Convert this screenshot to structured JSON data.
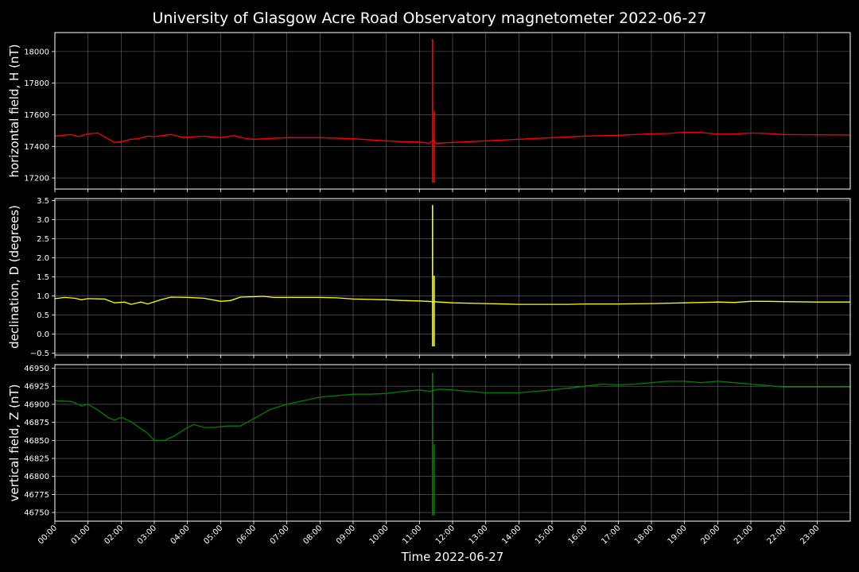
{
  "chart_data": {
    "type": "line",
    "title": "University of Glasgow Acre Road Observatory magnetometer 2022-06-27",
    "xlabel": "Time 2022-06-27",
    "x_ticks": [
      "00:00",
      "01:00",
      "02:00",
      "03:00",
      "04:00",
      "05:00",
      "06:00",
      "07:00",
      "08:00",
      "09:00",
      "10:00",
      "11:00",
      "12:00",
      "13:00",
      "14:00",
      "15:00",
      "16:00",
      "17:00",
      "18:00",
      "19:00",
      "20:00",
      "21:00",
      "22:00",
      "23:00"
    ],
    "xlim_hours": [
      0,
      24
    ],
    "grid": true,
    "panels": [
      {
        "name": "horizontal",
        "ylabel": "horizontal field, H (nT)",
        "color": "#ff0000",
        "ylim": [
          17130,
          18120
        ],
        "yticks": [
          17200,
          17400,
          17600,
          17800,
          18000
        ],
        "ytick_labels": [
          "17200",
          "17400",
          "17600",
          "17800",
          "18000"
        ],
        "points": [
          [
            0,
            17465
          ],
          [
            0.5,
            17475
          ],
          [
            0.7,
            17462
          ],
          [
            1,
            17480
          ],
          [
            1.3,
            17485
          ],
          [
            1.5,
            17460
          ],
          [
            1.8,
            17425
          ],
          [
            2,
            17430
          ],
          [
            2.3,
            17445
          ],
          [
            2.5,
            17448
          ],
          [
            2.8,
            17465
          ],
          [
            3,
            17462
          ],
          [
            3.5,
            17475
          ],
          [
            3.8,
            17460
          ],
          [
            4,
            17458
          ],
          [
            4.5,
            17465
          ],
          [
            4.8,
            17458
          ],
          [
            5,
            17455
          ],
          [
            5.4,
            17468
          ],
          [
            5.8,
            17448
          ],
          [
            6,
            17445
          ],
          [
            7,
            17455
          ],
          [
            8,
            17455
          ],
          [
            9,
            17448
          ],
          [
            10,
            17435
          ],
          [
            10.5,
            17430
          ],
          [
            11,
            17428
          ],
          [
            11.3,
            17420
          ],
          [
            11.42,
            17440
          ],
          [
            11.5,
            17420
          ],
          [
            12,
            17425
          ],
          [
            12.5,
            17430
          ],
          [
            13,
            17435
          ],
          [
            14,
            17445
          ],
          [
            15,
            17455
          ],
          [
            16,
            17465
          ],
          [
            17,
            17470
          ],
          [
            18,
            17480
          ],
          [
            18.5,
            17482
          ],
          [
            19,
            17490
          ],
          [
            19.5,
            17488
          ],
          [
            20,
            17478
          ],
          [
            20.5,
            17478
          ],
          [
            21,
            17485
          ],
          [
            21.5,
            17482
          ],
          [
            22,
            17475
          ],
          [
            23,
            17473
          ],
          [
            24,
            17472
          ]
        ],
        "spike": {
          "hour": 11.42,
          "min": 17170,
          "max": 18080
        }
      },
      {
        "name": "declination",
        "ylabel": "declination, D (degrees)",
        "color": "#ffff00",
        "ylim": [
          -0.55,
          3.55
        ],
        "yticks": [
          -0.5,
          0,
          0.5,
          1,
          1.5,
          2,
          2.5,
          3,
          3.5
        ],
        "ytick_labels": [
          "−0.5",
          "0.0",
          "0.5",
          "1.0",
          "1.5",
          "2.0",
          "2.5",
          "3.0",
          "3.5"
        ],
        "points": [
          [
            0,
            0.93
          ],
          [
            0.3,
            0.96
          ],
          [
            0.6,
            0.94
          ],
          [
            0.8,
            0.9
          ],
          [
            1,
            0.93
          ],
          [
            1.5,
            0.92
          ],
          [
            1.8,
            0.82
          ],
          [
            2.1,
            0.84
          ],
          [
            2.3,
            0.78
          ],
          [
            2.6,
            0.84
          ],
          [
            2.8,
            0.79
          ],
          [
            3.2,
            0.9
          ],
          [
            3.5,
            0.97
          ],
          [
            4,
            0.96
          ],
          [
            4.5,
            0.94
          ],
          [
            5,
            0.86
          ],
          [
            5.3,
            0.88
          ],
          [
            5.6,
            0.97
          ],
          [
            6,
            0.98
          ],
          [
            6.3,
            0.99
          ],
          [
            6.6,
            0.96
          ],
          [
            7,
            0.96
          ],
          [
            8,
            0.96
          ],
          [
            8.5,
            0.95
          ],
          [
            9,
            0.92
          ],
          [
            10,
            0.9
          ],
          [
            10.5,
            0.88
          ],
          [
            11,
            0.87
          ],
          [
            11.4,
            0.85
          ],
          [
            12,
            0.82
          ],
          [
            13,
            0.8
          ],
          [
            14,
            0.78
          ],
          [
            15,
            0.78
          ],
          [
            15.5,
            0.78
          ],
          [
            16,
            0.79
          ],
          [
            17,
            0.79
          ],
          [
            18,
            0.8
          ],
          [
            19,
            0.82
          ],
          [
            20,
            0.84
          ],
          [
            20.5,
            0.83
          ],
          [
            21,
            0.86
          ],
          [
            21.5,
            0.86
          ],
          [
            22,
            0.85
          ],
          [
            23,
            0.84
          ],
          [
            24,
            0.84
          ]
        ],
        "spike": {
          "hour": 11.42,
          "min": -0.32,
          "max": 3.38
        }
      },
      {
        "name": "vertical",
        "ylabel": "vertical field, Z (nT)",
        "color": "#008000",
        "ylim": [
          46738,
          46955
        ],
        "yticks": [
          46750,
          46775,
          46800,
          46825,
          46850,
          46875,
          46900,
          46925,
          46950
        ],
        "ytick_labels": [
          "46750",
          "46775",
          "46800",
          "46825",
          "46850",
          "46875",
          "46900",
          "46925",
          "46950"
        ],
        "points": [
          [
            0,
            46905
          ],
          [
            0.5,
            46904
          ],
          [
            0.8,
            46898
          ],
          [
            1,
            46900
          ],
          [
            1.3,
            46892
          ],
          [
            1.6,
            46882
          ],
          [
            1.8,
            46878
          ],
          [
            2,
            46882
          ],
          [
            2.3,
            46876
          ],
          [
            2.6,
            46866
          ],
          [
            2.8,
            46860
          ],
          [
            3,
            46850
          ],
          [
            3.3,
            46850
          ],
          [
            3.6,
            46856
          ],
          [
            4,
            46868
          ],
          [
            4.2,
            46872
          ],
          [
            4.5,
            46868
          ],
          [
            4.8,
            46868
          ],
          [
            5.2,
            46870
          ],
          [
            5.6,
            46870
          ],
          [
            6,
            46880
          ],
          [
            6.5,
            46893
          ],
          [
            7,
            46900
          ],
          [
            7.5,
            46905
          ],
          [
            8,
            46910
          ],
          [
            8.5,
            46912
          ],
          [
            9,
            46914
          ],
          [
            9.5,
            46914
          ],
          [
            10,
            46915
          ],
          [
            10.5,
            46918
          ],
          [
            11,
            46920
          ],
          [
            11.3,
            46918
          ],
          [
            11.6,
            46921
          ],
          [
            12,
            46920
          ],
          [
            12.5,
            46918
          ],
          [
            13,
            46916
          ],
          [
            13.5,
            46916
          ],
          [
            14,
            46916
          ],
          [
            14.5,
            46918
          ],
          [
            15,
            46920
          ],
          [
            16,
            46925
          ],
          [
            16.5,
            46928
          ],
          [
            17,
            46927
          ],
          [
            17.5,
            46928
          ],
          [
            18,
            46930
          ],
          [
            18.5,
            46932
          ],
          [
            19,
            46932
          ],
          [
            19.5,
            46930
          ],
          [
            20,
            46932
          ],
          [
            20.5,
            46930
          ],
          [
            21,
            46928
          ],
          [
            21.5,
            46926
          ],
          [
            22,
            46924
          ],
          [
            22.5,
            46924
          ],
          [
            23,
            46924
          ],
          [
            24,
            46924
          ]
        ],
        "spike": {
          "hour": 11.42,
          "min": 46746,
          "max": 46944
        }
      }
    ]
  }
}
